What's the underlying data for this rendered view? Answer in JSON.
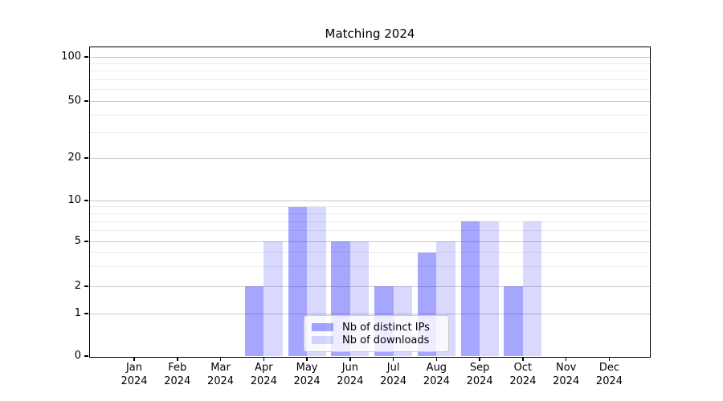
{
  "chart_data": {
    "type": "bar",
    "title": "Matching 2024",
    "categories": [
      "Jan 2024",
      "Feb 2024",
      "Mar 2024",
      "Apr 2024",
      "May 2024",
      "Jun 2024",
      "Jul 2024",
      "Aug 2024",
      "Sep 2024",
      "Oct 2024",
      "Nov 2024",
      "Dec 2024"
    ],
    "series": [
      {
        "name": "Nb of distinct IPs",
        "color": "#0000ff",
        "alpha": 0.35,
        "hex_on_white": "#a6a6ff",
        "values": [
          0,
          0,
          0,
          2,
          9,
          5,
          2,
          4,
          7,
          2,
          0,
          0
        ]
      },
      {
        "name": "Nb of downloads",
        "color": "#0000ff",
        "alpha": 0.15,
        "hex_on_white": "#d9d9ff",
        "values": [
          0,
          0,
          0,
          5,
          9,
          5,
          2,
          5,
          7,
          7,
          0,
          0
        ]
      }
    ],
    "xlabel": "",
    "ylabel": "",
    "yscale": "log-like with 0 at baseline",
    "yticks": [
      0,
      1,
      2,
      5,
      10,
      20,
      50,
      100
    ],
    "yminor_gridlines": [
      3,
      4,
      6,
      7,
      8,
      9,
      30,
      40,
      60,
      70,
      80,
      90
    ],
    "ylim": [
      0,
      115
    ],
    "grid": "horizontal major and minor gridlines",
    "legend_position": "lower center"
  },
  "colors": {
    "grid_major": "#c9c9c9",
    "grid_minor": "#ebebeb",
    "spine": "#000000",
    "legend_border": "#cccccc",
    "background": "#ffffff"
  }
}
